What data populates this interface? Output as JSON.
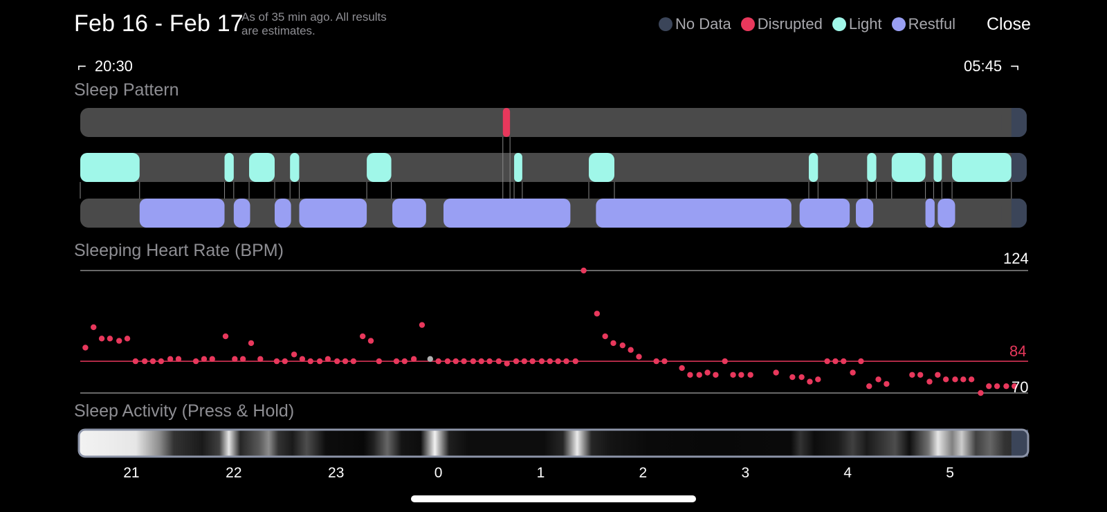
{
  "header": {
    "date_range": "Feb 16 - Feb 17",
    "as_of_line1": "As of 35 min ago. All results",
    "as_of_line2": "are estimates.",
    "close_label": "Close"
  },
  "legend": [
    {
      "label": "No Data",
      "color": "#3b4559"
    },
    {
      "label": "Disrupted",
      "color": "#e8385c"
    },
    {
      "label": "Light",
      "color": "#a0f7e9"
    },
    {
      "label": "Restful",
      "color": "#999ff3"
    }
  ],
  "time_range": {
    "start": "20:30",
    "end": "05:45"
  },
  "sleep_pattern": {
    "label": "Sleep Pattern",
    "unit": "hours since 20:30",
    "duration_hours": 9.25,
    "no_data_from": 9.1,
    "disrupted": [
      [
        4.13,
        4.2
      ]
    ],
    "light": [
      [
        0,
        0.58
      ],
      [
        1.41,
        1.5
      ],
      [
        1.65,
        1.9
      ],
      [
        2.05,
        2.14
      ],
      [
        2.8,
        3.04
      ],
      [
        4.24,
        4.32
      ],
      [
        4.97,
        5.22
      ],
      [
        7.12,
        7.21
      ],
      [
        7.69,
        7.78
      ],
      [
        7.93,
        8.26
      ],
      [
        8.34,
        8.42
      ],
      [
        8.52,
        9.1
      ]
    ],
    "restful": [
      [
        0.58,
        1.41
      ],
      [
        1.5,
        1.66
      ],
      [
        1.9,
        2.06
      ],
      [
        2.14,
        2.8
      ],
      [
        3.05,
        3.38
      ],
      [
        3.55,
        4.79
      ],
      [
        5.04,
        6.95
      ],
      [
        7.03,
        7.52
      ],
      [
        7.58,
        7.75
      ],
      [
        8.26,
        8.35
      ],
      [
        8.38,
        8.55
      ]
    ]
  },
  "heart_rate": {
    "label": "Sleeping Heart Rate (BPM)",
    "max_label": "124",
    "avg_label": "84",
    "min_label": "70",
    "max": 124,
    "avg": 84,
    "min": 70
  },
  "sleep_activity": {
    "label": "Sleep Activity (Press & Hold)",
    "axis_ticks": [
      "21",
      "22",
      "23",
      "0",
      "1",
      "2",
      "3",
      "4",
      "5"
    ]
  },
  "chart_data": {
    "type": "scatter",
    "title": "Sleeping Heart Rate (BPM)",
    "x_unit": "hours since 20:30",
    "ylim": [
      70,
      124
    ],
    "reference_lines": [
      {
        "name": "max",
        "y": 124
      },
      {
        "name": "avg",
        "y": 84
      },
      {
        "name": "min",
        "y": 70
      }
    ],
    "points": [
      [
        0.05,
        90
      ],
      [
        0.13,
        99
      ],
      [
        0.21,
        94
      ],
      [
        0.29,
        94
      ],
      [
        0.38,
        93
      ],
      [
        0.46,
        94
      ],
      [
        0.54,
        84
      ],
      [
        0.63,
        84
      ],
      [
        0.71,
        84
      ],
      [
        0.79,
        84
      ],
      [
        0.88,
        85
      ],
      [
        0.96,
        85
      ],
      [
        1.13,
        84
      ],
      [
        1.21,
        85
      ],
      [
        1.29,
        85
      ],
      [
        1.42,
        95
      ],
      [
        1.51,
        85
      ],
      [
        1.59,
        85
      ],
      [
        1.67,
        92
      ],
      [
        1.76,
        85
      ],
      [
        1.92,
        84
      ],
      [
        2.0,
        84
      ],
      [
        2.09,
        87
      ],
      [
        2.17,
        85
      ],
      [
        2.25,
        84
      ],
      [
        2.34,
        84
      ],
      [
        2.42,
        85
      ],
      [
        2.51,
        84
      ],
      [
        2.59,
        84
      ],
      [
        2.67,
        84
      ],
      [
        2.76,
        95
      ],
      [
        2.84,
        93
      ],
      [
        2.92,
        84
      ],
      [
        3.09,
        84
      ],
      [
        3.17,
        84
      ],
      [
        3.26,
        85
      ],
      [
        3.34,
        100
      ],
      [
        3.5,
        84
      ],
      [
        3.59,
        84
      ],
      [
        3.67,
        84
      ],
      [
        3.75,
        84
      ],
      [
        3.84,
        84
      ],
      [
        3.92,
        84
      ],
      [
        4.0,
        84
      ],
      [
        4.09,
        84
      ],
      [
        4.17,
        83
      ],
      [
        4.26,
        84
      ],
      [
        4.34,
        84
      ],
      [
        4.42,
        84
      ],
      [
        4.51,
        84
      ],
      [
        4.59,
        84
      ],
      [
        4.67,
        84
      ],
      [
        4.75,
        84
      ],
      [
        4.84,
        84
      ],
      [
        4.92,
        124
      ],
      [
        5.05,
        105
      ],
      [
        5.13,
        95
      ],
      [
        5.21,
        92
      ],
      [
        5.3,
        91
      ],
      [
        5.38,
        89
      ],
      [
        5.46,
        86
      ],
      [
        5.63,
        84
      ],
      [
        5.71,
        84
      ],
      [
        5.88,
        81
      ],
      [
        5.96,
        78
      ],
      [
        6.05,
        78
      ],
      [
        6.13,
        79
      ],
      [
        6.21,
        78
      ],
      [
        6.3,
        84
      ],
      [
        6.38,
        78
      ],
      [
        6.46,
        78
      ],
      [
        6.55,
        78
      ],
      [
        6.8,
        79
      ],
      [
        6.96,
        77
      ],
      [
        7.05,
        77
      ],
      [
        7.13,
        75
      ],
      [
        7.21,
        76
      ],
      [
        7.3,
        84
      ],
      [
        7.38,
        84
      ],
      [
        7.46,
        84
      ],
      [
        7.55,
        79
      ],
      [
        7.63,
        84
      ],
      [
        7.71,
        73
      ],
      [
        7.8,
        76
      ],
      [
        7.88,
        74
      ],
      [
        8.13,
        78
      ],
      [
        8.21,
        78
      ],
      [
        8.3,
        75
      ],
      [
        8.38,
        78
      ],
      [
        8.46,
        76
      ],
      [
        8.55,
        76
      ],
      [
        8.63,
        76
      ],
      [
        8.71,
        76
      ],
      [
        8.8,
        70
      ],
      [
        8.88,
        73
      ],
      [
        8.96,
        73
      ],
      [
        9.05,
        73
      ],
      [
        9.13,
        73
      ]
    ],
    "gray_points": [
      [
        3.42,
        85
      ]
    ]
  },
  "activity_stops": [
    [
      0,
      0.95
    ],
    [
      0.03,
      0.93
    ],
    [
      0.06,
      0.9
    ],
    [
      0.085,
      0.55
    ],
    [
      0.1,
      0.2
    ],
    [
      0.13,
      0.1
    ],
    [
      0.148,
      0.25
    ],
    [
      0.158,
      0.9
    ],
    [
      0.17,
      0.15
    ],
    [
      0.19,
      0.35
    ],
    [
      0.2,
      0.55
    ],
    [
      0.21,
      0.2
    ],
    [
      0.225,
      0.1
    ],
    [
      0.24,
      0.3
    ],
    [
      0.26,
      0.05
    ],
    [
      0.3,
      0.03
    ],
    [
      0.31,
      0.12
    ],
    [
      0.325,
      0.4
    ],
    [
      0.34,
      0.08
    ],
    [
      0.36,
      0.05
    ],
    [
      0.375,
      0.95
    ],
    [
      0.39,
      0.12
    ],
    [
      0.41,
      0.05
    ],
    [
      0.49,
      0.05
    ],
    [
      0.51,
      0.15
    ],
    [
      0.525,
      0.92
    ],
    [
      0.54,
      0.15
    ],
    [
      0.56,
      0.08
    ],
    [
      0.6,
      0.04
    ],
    [
      0.67,
      0.03
    ],
    [
      0.75,
      0.04
    ],
    [
      0.76,
      0.2
    ],
    [
      0.775,
      0.05
    ],
    [
      0.8,
      0.1
    ],
    [
      0.815,
      0.25
    ],
    [
      0.83,
      0.1
    ],
    [
      0.845,
      0.2
    ],
    [
      0.86,
      0.3
    ],
    [
      0.875,
      0.06
    ],
    [
      0.895,
      0.45
    ],
    [
      0.905,
      0.9
    ],
    [
      0.92,
      0.5
    ],
    [
      0.93,
      0.8
    ],
    [
      0.945,
      0.25
    ],
    [
      0.96,
      0.4
    ],
    [
      0.975,
      0.2
    ],
    [
      1,
      0.15
    ]
  ]
}
